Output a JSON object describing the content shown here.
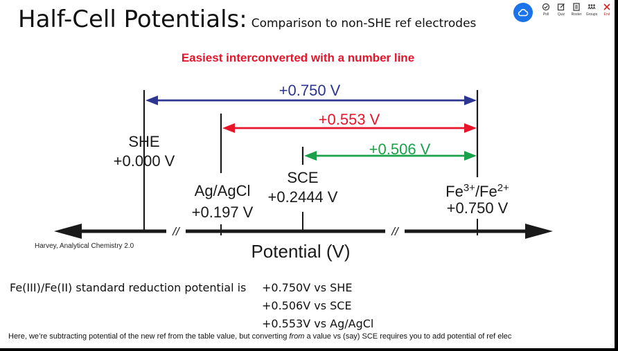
{
  "title": {
    "main": "Half-Cell Potentials:",
    "subtitle": "Comparison to non-SHE ref electrodes"
  },
  "toolbar": {
    "items": [
      {
        "icon": "poll-icon",
        "label": "Poll"
      },
      {
        "icon": "quiz-icon",
        "label": "Quiz"
      },
      {
        "icon": "roster-icon",
        "label": "Roster"
      },
      {
        "icon": "groups-icon",
        "label": "Groups"
      },
      {
        "icon": "close-icon",
        "label": "End"
      }
    ]
  },
  "caption": "Easiest interconverted with a number line",
  "diagram": {
    "arrows": [
      {
        "label": "+0.750 V",
        "color": "#2c3590"
      },
      {
        "label": "+0.553 V",
        "color": "#e8142a"
      },
      {
        "label": "+0.506 V",
        "color": "#1aa14a"
      }
    ],
    "electrodes": [
      {
        "name": "SHE",
        "potential": "+0.000 V"
      },
      {
        "name": "Ag/AgCl",
        "potential": "+0.197 V"
      },
      {
        "name": "SCE",
        "potential": "+0.2444 V"
      },
      {
        "name_base": "Fe",
        "sup1": "3+",
        "mid": "/Fe",
        "sup2": "2+",
        "potential": "+0.750 V"
      }
    ],
    "break_marks": [
      "//",
      "//"
    ],
    "axis_label": "Potential (V)"
  },
  "credit": "Harvey, Analytical Chemistry 2.0",
  "standard_potential": {
    "lead": "Fe(III)/Fe(II) standard reduction potential is",
    "values": [
      "+0.750V vs SHE",
      "+0.506V vs SCE",
      "+0.553V vs Ag/AgCl"
    ]
  },
  "note": {
    "before": "Here, we’re subtracting potential of the new ref from the table value, but converting ",
    "italic": "from",
    "after": " a value vs (say) SCE requires you to add potential of ref elec"
  }
}
